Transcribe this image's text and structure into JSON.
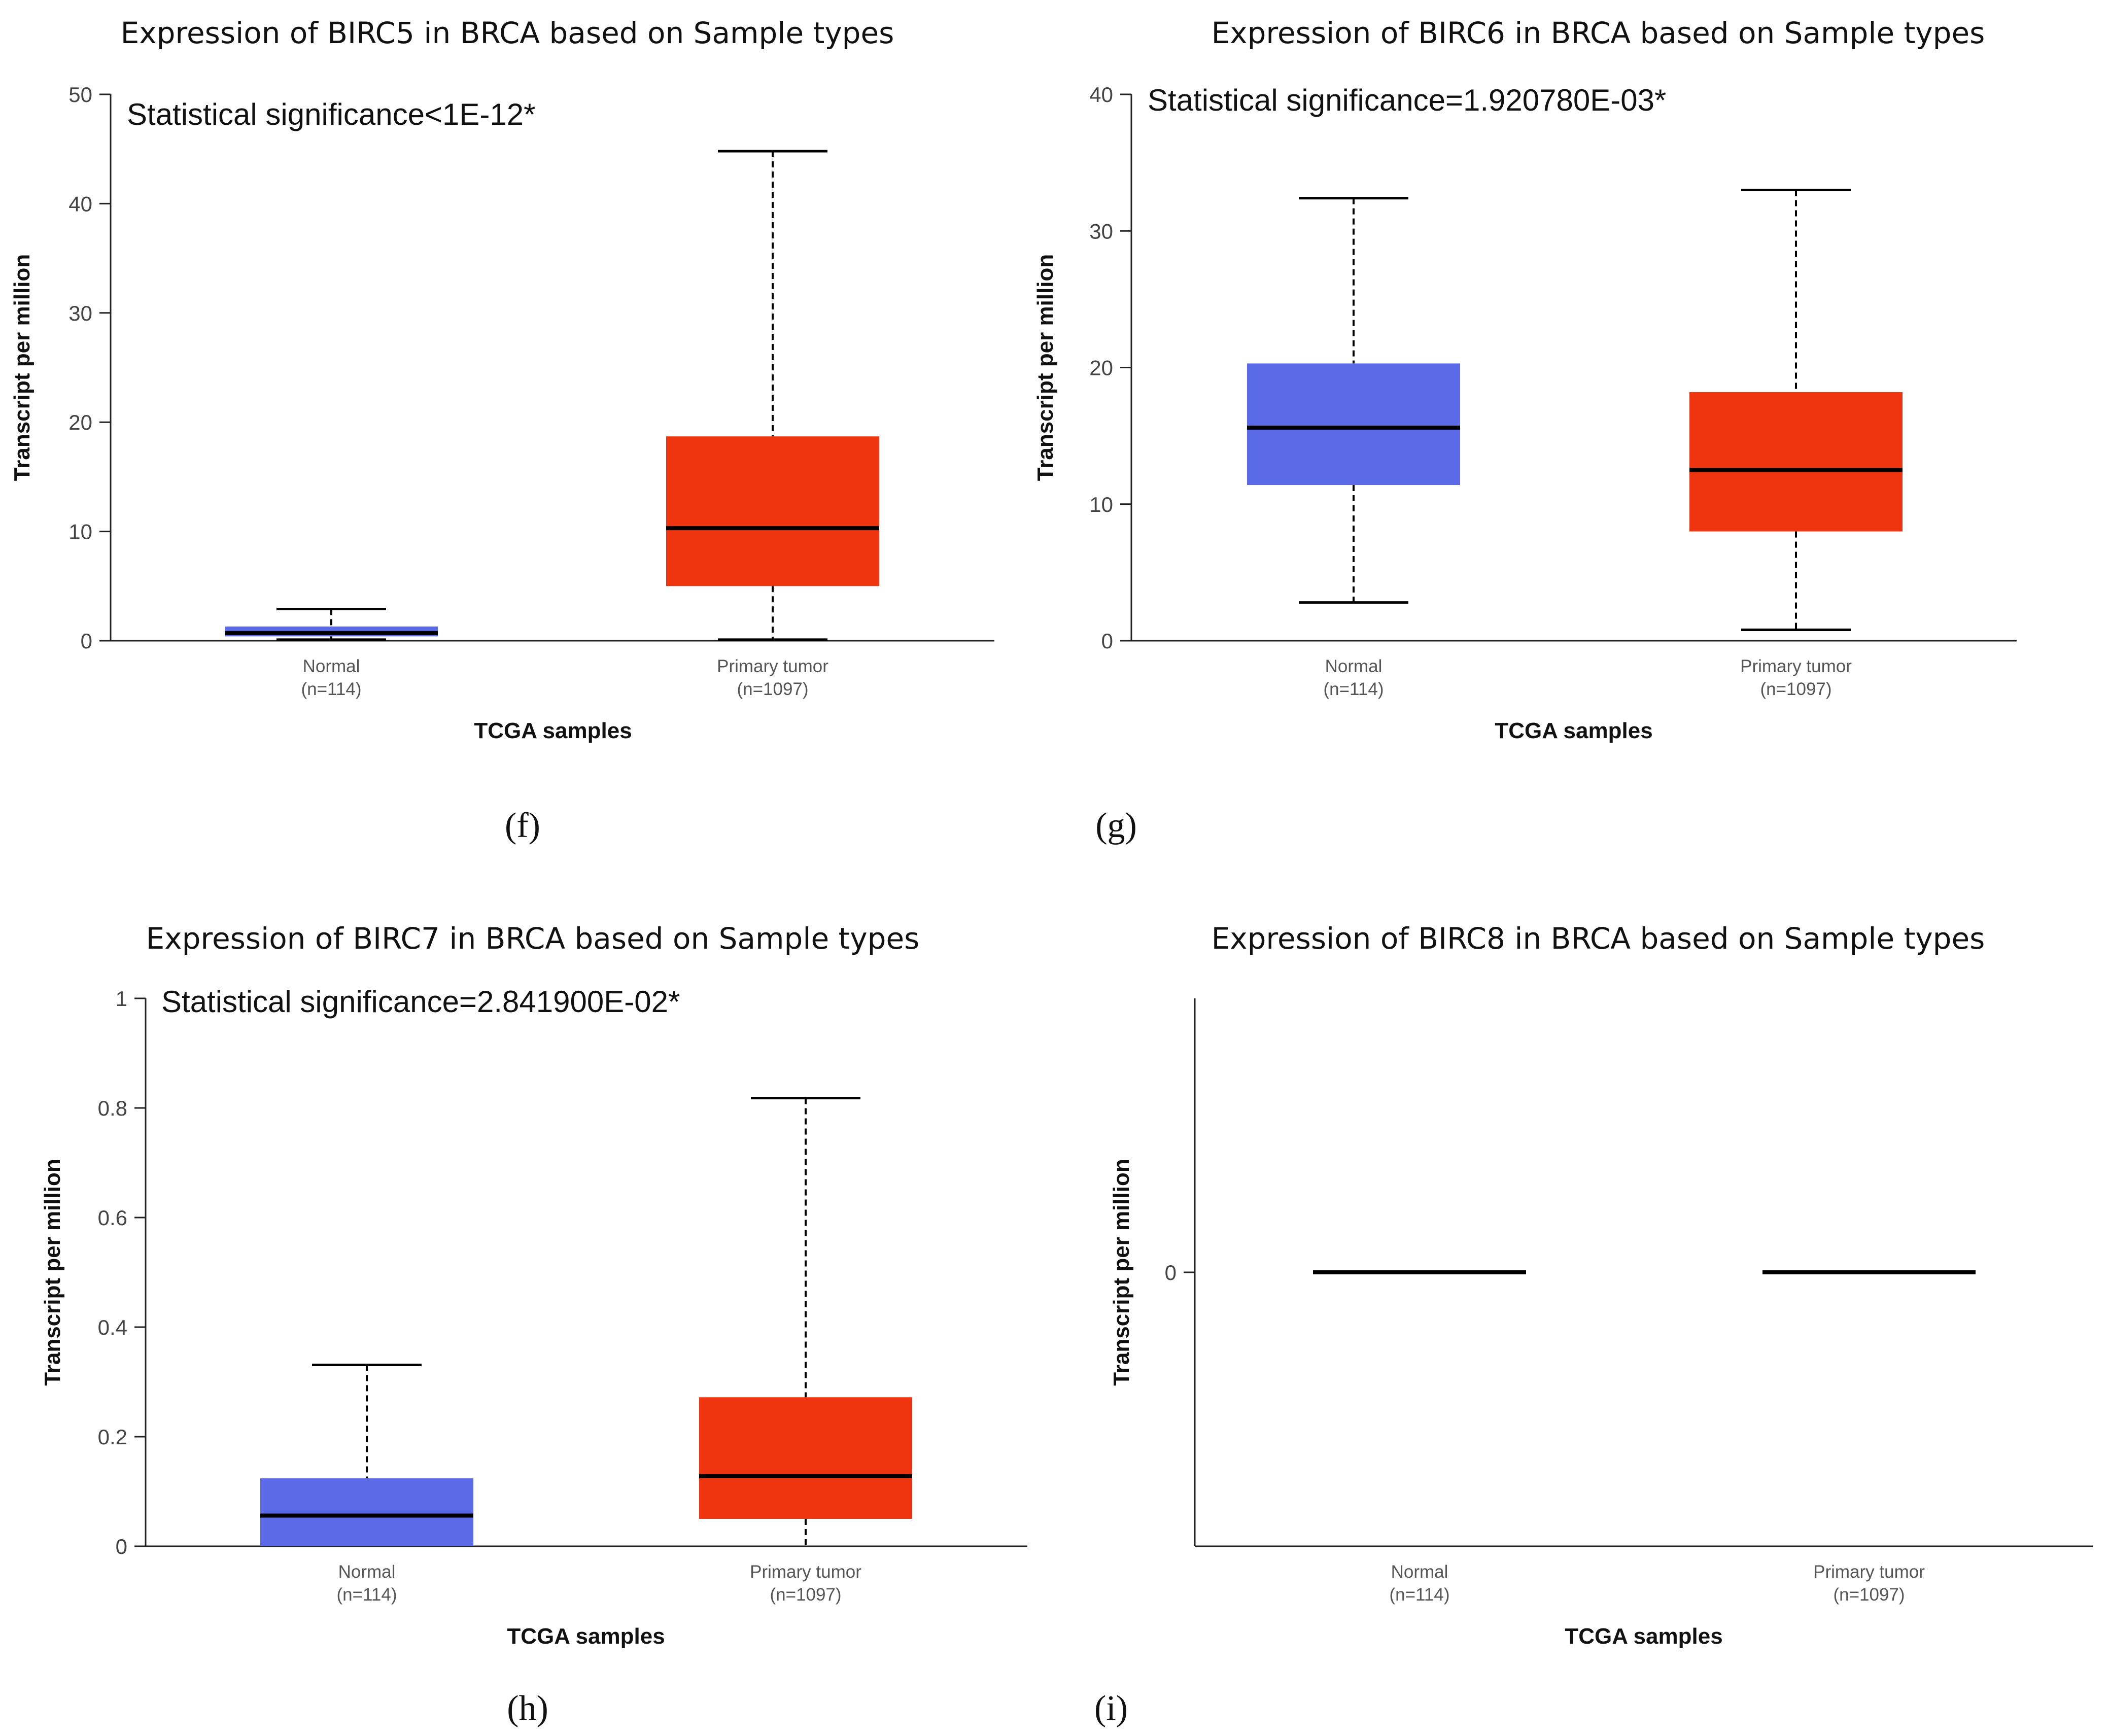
{
  "colors": {
    "normal": "#5B6AE6",
    "tumor": "#EE3510"
  },
  "chart_data": [
    {
      "type": "box",
      "panel_label": "(f)",
      "title": "Expression of BIRC5 in BRCA based on Sample types",
      "significance": "Statistical significance<1E-12*",
      "xlabel": "TCGA samples",
      "ylabel": "Transcript per million",
      "ylim": [
        0,
        50
      ],
      "yticks": [
        0,
        10,
        20,
        30,
        40,
        50
      ],
      "ytick_labels": [
        "0",
        "10",
        "20",
        "30",
        "40",
        "50"
      ],
      "categories": [
        {
          "name": "Normal",
          "n": "(n=114)",
          "min": 0.1,
          "q1": 0.4,
          "median": 0.7,
          "q3": 1.3,
          "max": 2.9
        },
        {
          "name": "Primary tumor",
          "n": "(n=1097)",
          "min": 0.1,
          "q1": 5.0,
          "median": 10.3,
          "q3": 18.7,
          "max": 44.8
        }
      ]
    },
    {
      "type": "box",
      "panel_label": "(g)",
      "title": "Expression of BIRC6 in BRCA based on Sample types",
      "significance": "Statistical significance=1.920780E-03*",
      "xlabel": "TCGA samples",
      "ylabel": "Transcript per million",
      "ylim": [
        0,
        40
      ],
      "yticks": [
        0,
        10,
        20,
        30,
        40
      ],
      "ytick_labels": [
        "0",
        "10",
        "20",
        "30",
        "40"
      ],
      "categories": [
        {
          "name": "Normal",
          "n": "(n=114)",
          "min": 2.8,
          "q1": 11.4,
          "median": 15.6,
          "q3": 20.3,
          "max": 32.4
        },
        {
          "name": "Primary tumor",
          "n": "(n=1097)",
          "min": 0.8,
          "q1": 8.0,
          "median": 12.5,
          "q3": 18.2,
          "max": 33.0
        }
      ]
    },
    {
      "type": "box",
      "panel_label": "(h)",
      "title": "Expression of BIRC7 in BRCA based on Sample types",
      "significance": "Statistical significance=2.841900E-02*",
      "xlabel": "TCGA samples",
      "ylabel": "Transcript per million",
      "ylim": [
        0,
        1
      ],
      "yticks": [
        0,
        0.2,
        0.4,
        0.6,
        0.8,
        1
      ],
      "ytick_labels": [
        "0",
        "0.2",
        "0.4",
        "0.6",
        "0.8",
        "1"
      ],
      "categories": [
        {
          "name": "Normal",
          "n": "(n=114)",
          "min": 0,
          "q1": 0,
          "median": 0.056,
          "q3": 0.124,
          "max": 0.331
        },
        {
          "name": "Primary tumor",
          "n": "(n=1097)",
          "min": 0,
          "q1": 0.05,
          "median": 0.128,
          "q3": 0.272,
          "max": 0.818
        }
      ]
    },
    {
      "type": "box",
      "panel_label": "(i)",
      "title": "Expression of BIRC8 in BRCA based on Sample types",
      "significance": "",
      "xlabel": "TCGA samples",
      "ylabel": "Transcript per million",
      "ylim": [
        -1,
        1
      ],
      "yticks": [
        0
      ],
      "ytick_labels": [
        "0"
      ],
      "categories": [
        {
          "name": "Normal",
          "n": "(n=114)",
          "min": 0,
          "q1": 0,
          "median": 0,
          "q3": 0,
          "max": 0
        },
        {
          "name": "Primary tumor",
          "n": "(n=1097)",
          "min": 0,
          "q1": 0,
          "median": 0,
          "q3": 0,
          "max": 0
        }
      ]
    }
  ]
}
